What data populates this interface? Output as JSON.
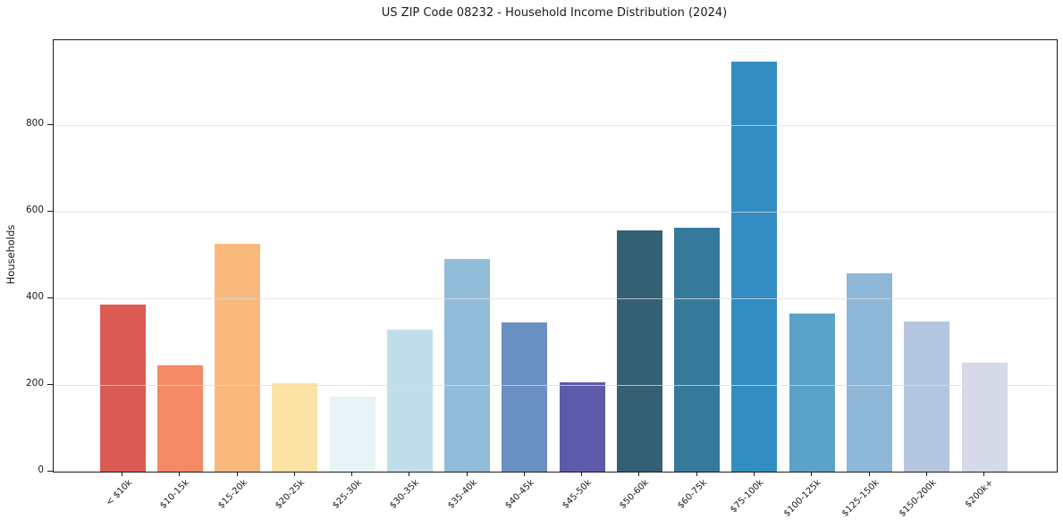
{
  "chart_data": {
    "type": "bar",
    "title": "US ZIP Code 08232 - Household Income Distribution (2024)",
    "xlabel": "",
    "ylabel": "Households",
    "categories": [
      "< $10k",
      "$10-15k",
      "$15-20k",
      "$20-25k",
      "$25-30k",
      "$30-35k",
      "$35-40k",
      "$40-45k",
      "$45-50k",
      "$50-60k",
      "$60-75k",
      "$75-100k",
      "$100-125k",
      "$125-150k",
      "$150-200k",
      "$200k+"
    ],
    "values": [
      385,
      246,
      525,
      203,
      174,
      328,
      490,
      344,
      205,
      556,
      563,
      945,
      364,
      458,
      346,
      251
    ],
    "bar_colors": [
      "#d95b54",
      "#f58a67",
      "#fab97c",
      "#fde3a6",
      "#e7f3f6",
      "#c0dfeb",
      "#90bcda",
      "#6b90c4",
      "#5d5ba9",
      "#355f72",
      "#35799b",
      "#338dc2",
      "#5aa2c8",
      "#8fb7d7",
      "#b5c7e0",
      "#d6d9e7"
    ],
    "yticks": [
      0,
      200,
      400,
      600,
      800
    ],
    "ylim": [
      0,
      995
    ],
    "grid": true,
    "grid_axis": "y",
    "legend": false,
    "background": "#ffffff",
    "grid_color": "#dcdcdc",
    "axis_color": "#1a1a1a"
  }
}
